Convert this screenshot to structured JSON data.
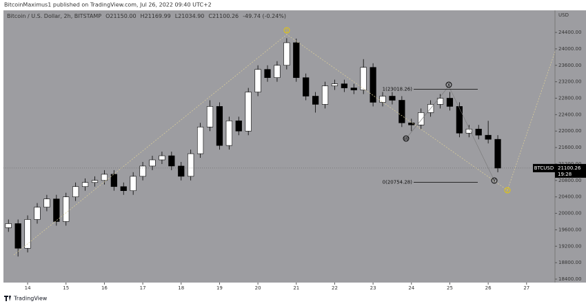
{
  "header": {
    "text": "BitcoinMaximus1 published on TradingView.com, Jul 26, 2022 09:40 UTC+2"
  },
  "footer": {
    "brand": "TradingView"
  },
  "chart_data": {
    "type": "candlestick",
    "legend": {
      "symbol": "Bitcoin / U.S. Dollar, 2h, BITSTAMP",
      "items": [
        {
          "key": "O",
          "value": "21150.00"
        },
        {
          "key": "H",
          "value": "21169.99"
        },
        {
          "key": "L",
          "value": "21034.90"
        },
        {
          "key": "C",
          "value": "21100.26"
        }
      ],
      "change": "-49.74 (-0.24%)"
    },
    "y_unit": "USD",
    "ticker": "BTCUSD",
    "last_price": 21100.26,
    "countdown": "19:28",
    "up_color": "#ffffff",
    "down_color": "#000000",
    "background": "#9d9da1",
    "x": [
      13.5,
      13.75,
      14,
      14.25,
      14.5,
      14.75,
      15,
      15.25,
      15.5,
      15.75,
      16,
      16.25,
      16.5,
      16.75,
      17,
      17.25,
      17.5,
      17.75,
      18,
      18.25,
      18.5,
      18.75,
      19,
      19.25,
      19.5,
      19.75,
      20,
      20.25,
      20.5,
      20.75,
      21,
      21.25,
      21.5,
      21.75,
      22,
      22.25,
      22.5,
      22.75,
      23,
      23.25,
      23.5,
      23.75,
      24,
      24.25,
      24.5,
      24.75,
      25,
      25.25,
      25.5,
      25.75,
      26,
      26.25
    ],
    "open": [
      19650,
      19750,
      19150,
      19850,
      20150,
      20350,
      19800,
      20400,
      20650,
      20750,
      20800,
      20950,
      20650,
      20550,
      20900,
      21150,
      21300,
      21400,
      21150,
      20900,
      21450,
      22100,
      22600,
      21650,
      22250,
      22000,
      22950,
      23500,
      23300,
      23600,
      24150,
      23300,
      22850,
      22650,
      23100,
      23150,
      23050,
      23000,
      23550,
      22700,
      22850,
      22750,
      22200,
      22150,
      22450,
      22650,
      22800,
      22600,
      21950,
      22050,
      21900,
      21800
    ],
    "high": [
      19850,
      19850,
      19950,
      20250,
      20450,
      20450,
      20500,
      20750,
      20850,
      20900,
      21050,
      21050,
      20750,
      21000,
      21250,
      21400,
      21500,
      21500,
      21250,
      21550,
      22200,
      22750,
      22700,
      22350,
      22350,
      23050,
      23600,
      23600,
      23700,
      24260,
      24250,
      23400,
      22950,
      23200,
      23250,
      23250,
      23150,
      23750,
      23650,
      22950,
      22950,
      22850,
      22300,
      22550,
      22750,
      22900,
      22950,
      22700,
      22150,
      22150,
      22250,
      21900
    ],
    "low": [
      19550,
      18950,
      19050,
      19750,
      20050,
      19700,
      19700,
      20300,
      20550,
      20650,
      20700,
      20550,
      20450,
      20450,
      20800,
      21050,
      21200,
      21050,
      20800,
      20800,
      21350,
      22000,
      21550,
      21550,
      21900,
      21900,
      22850,
      23200,
      23200,
      23500,
      23200,
      22750,
      22450,
      22550,
      23000,
      22950,
      22900,
      22900,
      22600,
      22600,
      22650,
      22100,
      22000,
      22050,
      22350,
      22550,
      22500,
      21850,
      21850,
      21800,
      21700,
      21000
    ],
    "close": [
      19750,
      19150,
      19850,
      20150,
      20350,
      19800,
      20400,
      20650,
      20750,
      20800,
      20950,
      20650,
      20550,
      20900,
      21150,
      21300,
      21400,
      21150,
      20900,
      21450,
      22100,
      22600,
      21650,
      22250,
      22000,
      22950,
      23500,
      23300,
      23600,
      24150,
      23300,
      22850,
      22650,
      23100,
      23150,
      23050,
      23000,
      23550,
      22700,
      22850,
      22750,
      22200,
      22150,
      22450,
      22650,
      22800,
      22600,
      21950,
      22050,
      21900,
      21800,
      21100
    ],
    "xlim": [
      13.37,
      27.74
    ],
    "xticks": [
      14,
      15,
      16,
      17,
      18,
      19,
      20,
      21,
      22,
      23,
      24,
      25,
      26,
      27
    ],
    "ylim": [
      18316,
      24937
    ],
    "yticks": [
      {
        "value": 18400,
        "label": "18400.00"
      },
      {
        "value": 18800,
        "label": "18800.00"
      },
      {
        "value": 19200,
        "label": "19200.00"
      },
      {
        "value": 19600,
        "label": "19600.00"
      },
      {
        "value": 20000,
        "label": "20000.00"
      },
      {
        "value": 20400,
        "label": "20400.00"
      },
      {
        "value": 20800,
        "label": "20800.00"
      },
      {
        "value": 21200,
        "label": "21200.00"
      },
      {
        "value": 21600,
        "label": "21600.00"
      },
      {
        "value": 22000,
        "label": "22000.00"
      },
      {
        "value": 22400,
        "label": "22400.00"
      },
      {
        "value": 22800,
        "label": "22800.00"
      },
      {
        "value": 23200,
        "label": "23200.00"
      },
      {
        "value": 23600,
        "label": "23600.00"
      },
      {
        "value": 24000,
        "label": "24000.00"
      },
      {
        "value": 24400,
        "label": "24400.00"
      }
    ],
    "fib_levels": [
      {
        "value": 23018.26,
        "label": "1(23018.26)"
      },
      {
        "value": 20754.28,
        "label": "0(20754.28)"
      }
    ],
    "wave_labels": [
      "1",
      "X",
      "W",
      "Y",
      "2"
    ]
  }
}
